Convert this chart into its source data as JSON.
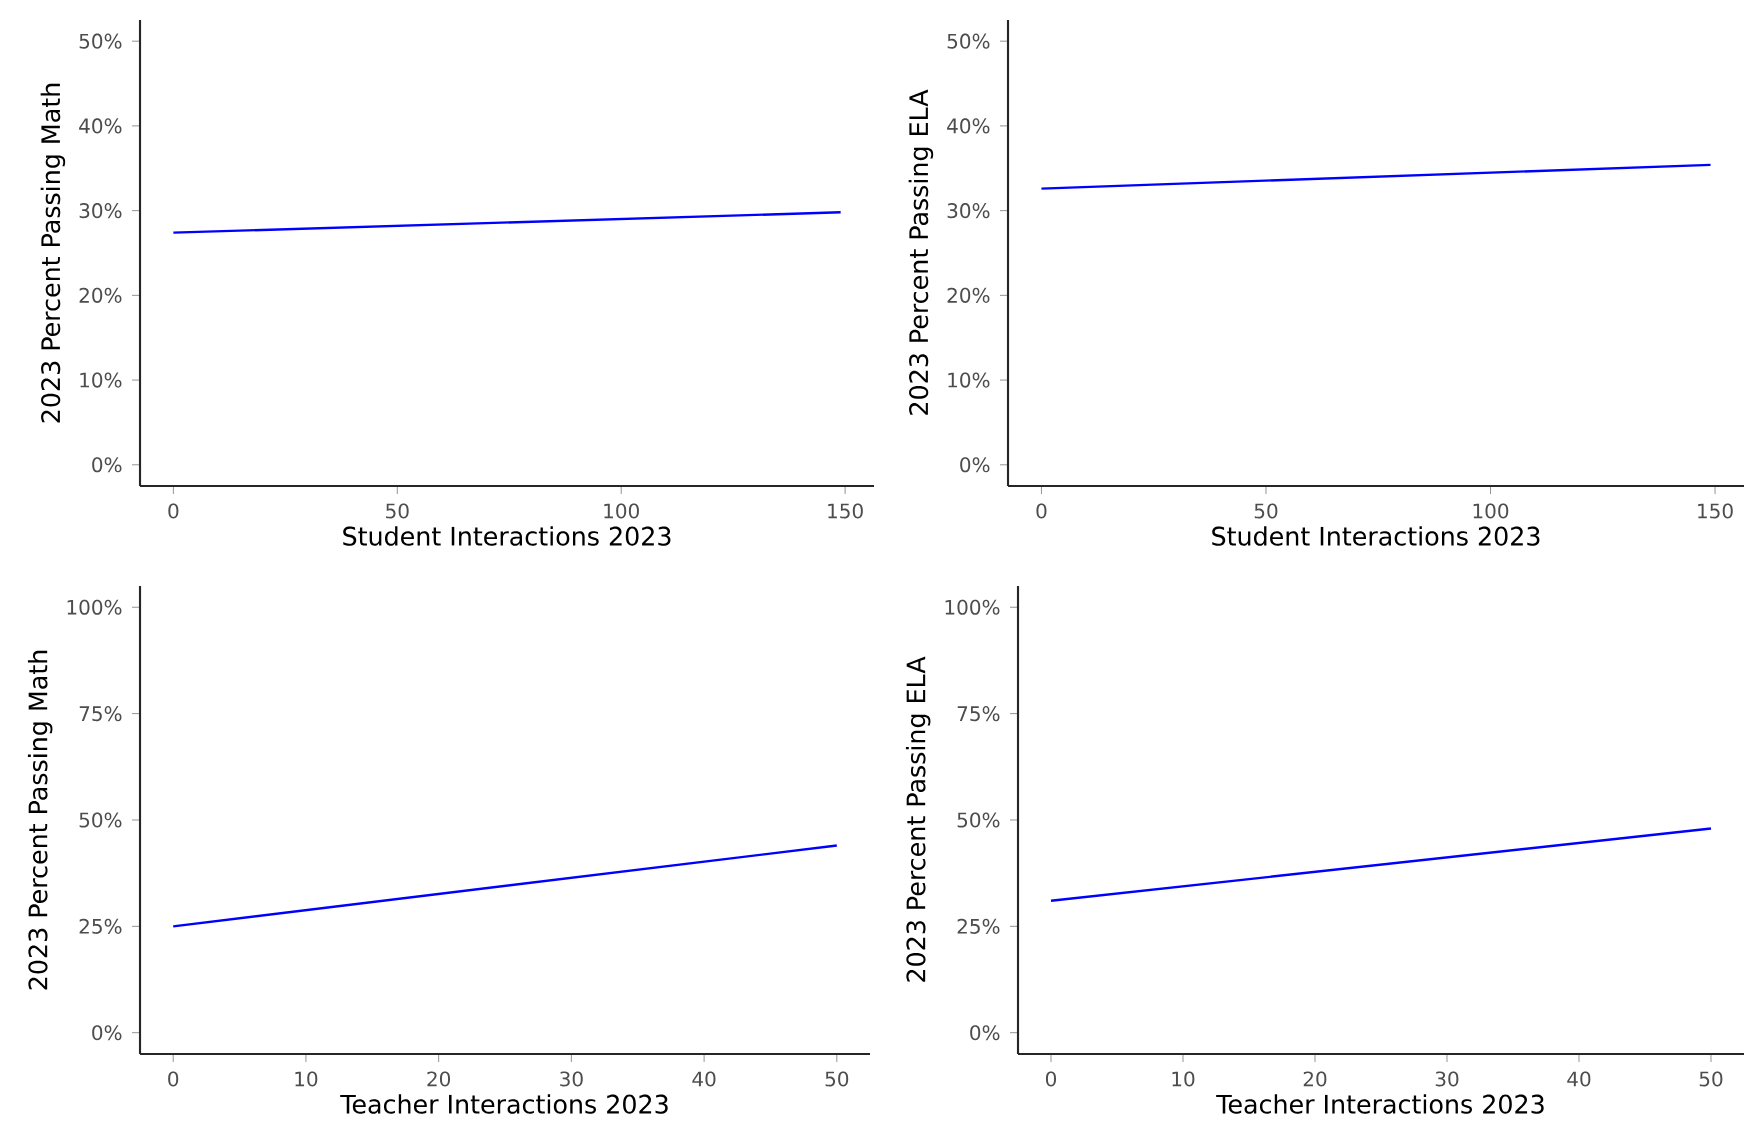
{
  "chart_data": [
    {
      "type": "line",
      "xlabel": "Student Interactions 2023",
      "ylabel": "2023 Percent Passing Math",
      "x": [
        0,
        149
      ],
      "values": [
        27.4,
        29.8
      ],
      "color": "#0000ff",
      "xlim": [
        -7.45,
        156.45
      ],
      "ylim": [
        -2.5,
        52.5
      ],
      "xticks": [
        0,
        50,
        100,
        150
      ],
      "yticks": [
        {
          "value": 0,
          "label": "0%"
        },
        {
          "value": 10,
          "label": "10%"
        },
        {
          "value": 20,
          "label": "20%"
        },
        {
          "value": 30,
          "label": "30%"
        },
        {
          "value": 40,
          "label": "40%"
        },
        {
          "value": 50,
          "label": "50%"
        }
      ]
    },
    {
      "type": "line",
      "xlabel": "Student Interactions 2023",
      "ylabel": "2023 Percent Passing ELA",
      "x": [
        0,
        149
      ],
      "values": [
        32.6,
        35.4
      ],
      "color": "#0000ff",
      "xlim": [
        -7.45,
        156.45
      ],
      "ylim": [
        -2.5,
        52.5
      ],
      "xticks": [
        0,
        50,
        100,
        150
      ],
      "yticks": [
        {
          "value": 0,
          "label": "0%"
        },
        {
          "value": 10,
          "label": "10%"
        },
        {
          "value": 20,
          "label": "20%"
        },
        {
          "value": 30,
          "label": "30%"
        },
        {
          "value": 40,
          "label": "40%"
        },
        {
          "value": 50,
          "label": "50%"
        }
      ]
    },
    {
      "type": "line",
      "xlabel": "Teacher Interactions 2023",
      "ylabel": "2023 Percent Passing Math",
      "x": [
        0,
        50
      ],
      "values": [
        25,
        44
      ],
      "color": "#0000ff",
      "xlim": [
        -2.5,
        52.5
      ],
      "ylim": [
        -5,
        105
      ],
      "xticks": [
        0,
        10,
        20,
        30,
        40,
        50
      ],
      "yticks": [
        {
          "value": 0,
          "label": "0%"
        },
        {
          "value": 25,
          "label": "25%"
        },
        {
          "value": 50,
          "label": "50%"
        },
        {
          "value": 75,
          "label": "75%"
        },
        {
          "value": 100,
          "label": "100%"
        }
      ]
    },
    {
      "type": "line",
      "xlabel": "Teacher Interactions 2023",
      "ylabel": "2023 Percent Passing ELA",
      "x": [
        0,
        50
      ],
      "values": [
        31,
        48
      ],
      "color": "#0000ff",
      "xlim": [
        -2.5,
        52.5
      ],
      "ylim": [
        -5,
        105
      ],
      "xticks": [
        0,
        10,
        20,
        30,
        40,
        50
      ],
      "yticks": [
        {
          "value": 0,
          "label": "0%"
        },
        {
          "value": 25,
          "label": "25%"
        },
        {
          "value": 50,
          "label": "50%"
        },
        {
          "value": 75,
          "label": "75%"
        },
        {
          "value": 100,
          "label": "100%"
        }
      ]
    }
  ]
}
